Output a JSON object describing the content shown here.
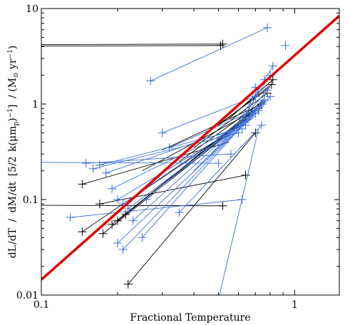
{
  "chart_data": {
    "type": "scatter",
    "title": "",
    "xlabel": "Fractional Temperature",
    "ylabel_parts": {
      "frac1_num": "dL",
      "frac1_den": "dT",
      "slash1": "/",
      "frac2_num": "dM",
      "frac2_den": "dt",
      "bracket_open": "[",
      "frac3_num": "5",
      "frac3_den": "2",
      "body": "k(μm",
      "sub_p": "p",
      "close_paren": ")",
      "sup1": "−1",
      "bracket_close": "]",
      "unit_open": "/ (M",
      "sun_symbol": "⊙",
      "unit_mid": " yr",
      "sup2": "−1",
      "unit_close": ")"
    },
    "x_scale": "log",
    "y_scale": "log",
    "xlim": [
      0.1,
      1.5
    ],
    "ylim": [
      0.01,
      10
    ],
    "x_ticks": [
      {
        "value": 0.1,
        "label": "0.1"
      },
      {
        "value": 1,
        "label": "1"
      }
    ],
    "y_ticks": [
      {
        "value": 0.01,
        "label": "0.01"
      },
      {
        "value": 0.1,
        "label": "0.1"
      },
      {
        "value": 1,
        "label": "1"
      },
      {
        "value": 10,
        "label": "10"
      }
    ],
    "grid": false,
    "colors": {
      "black": "#000000",
      "blue": "#3a6fd8",
      "fit": "#e00000"
    },
    "fit_line": {
      "color": "#e00000",
      "points": [
        [
          0.1,
          0.0145
        ],
        [
          1.5,
          8.4
        ]
      ]
    },
    "series": [
      {
        "color": "#000000",
        "segments": [
          [
            [
              0.1,
              4.05
            ],
            [
              0.51,
              4.1
            ]
          ],
          [
            [
              0.1,
              4.2
            ],
            [
              0.52,
              4.25
            ]
          ],
          [
            [
              0.1,
              0.087
            ],
            [
              0.52,
              0.086
            ]
          ],
          [
            [
              0.145,
              0.145
            ],
            [
              0.55,
              0.4
            ]
          ],
          [
            [
              0.145,
              0.046
            ],
            [
              0.6,
              0.6
            ]
          ],
          [
            [
              0.17,
              0.09
            ],
            [
              0.64,
              0.18
            ]
          ],
          [
            [
              0.175,
              0.044
            ],
            [
              0.65,
              0.7
            ]
          ],
          [
            [
              0.19,
              0.055
            ],
            [
              0.66,
              0.75
            ]
          ],
          [
            [
              0.2,
              0.06
            ],
            [
              0.67,
              0.8
            ]
          ],
          [
            [
              0.215,
              0.07
            ],
            [
              0.68,
              0.85
            ]
          ],
          [
            [
              0.22,
              0.013
            ],
            [
              0.7,
              0.5
            ]
          ],
          [
            [
              0.25,
              0.2
            ],
            [
              0.72,
              0.9
            ]
          ],
          [
            [
              0.3,
              0.33
            ],
            [
              0.74,
              1.0
            ]
          ],
          [
            [
              0.35,
              0.25
            ],
            [
              0.76,
              1.1
            ]
          ],
          [
            [
              0.4,
              0.35
            ],
            [
              0.78,
              1.3
            ]
          ],
          [
            [
              0.45,
              0.5
            ],
            [
              0.8,
              1.5
            ]
          ],
          [
            [
              0.5,
              0.6
            ],
            [
              0.81,
              1.6
            ]
          ],
          [
            [
              0.55,
              0.7
            ],
            [
              0.82,
              1.8
            ]
          ]
        ],
        "points": [
          [
            0.51,
            4.1
          ],
          [
            0.52,
            4.25
          ],
          [
            0.145,
            0.145
          ],
          [
            0.145,
            0.046
          ],
          [
            0.17,
            0.09
          ],
          [
            0.175,
            0.044
          ],
          [
            0.19,
            0.055
          ],
          [
            0.2,
            0.06
          ],
          [
            0.215,
            0.07
          ],
          [
            0.22,
            0.013
          ],
          [
            0.52,
            0.086
          ],
          [
            0.64,
            0.18
          ],
          [
            0.66,
            0.75
          ],
          [
            0.68,
            0.85
          ],
          [
            0.7,
            0.5
          ],
          [
            0.72,
            0.9
          ],
          [
            0.74,
            1.0
          ],
          [
            0.76,
            1.1
          ],
          [
            0.78,
            1.3
          ],
          [
            0.81,
            1.6
          ],
          [
            0.82,
            1.8
          ]
        ]
      },
      {
        "color": "#3a6fd8",
        "segments": [
          [
            [
              0.27,
              1.75
            ],
            [
              0.78,
              6.3
            ]
          ],
          [
            [
              0.1,
              0.245
            ],
            [
              0.5,
              0.24
            ]
          ],
          [
            [
              0.13,
              0.065
            ],
            [
              0.62,
              0.1
            ]
          ],
          [
            [
              0.15,
              0.24
            ],
            [
              0.56,
              0.3
            ]
          ],
          [
            [
              0.16,
              0.21
            ],
            [
              0.6,
              0.5
            ]
          ],
          [
            [
              0.17,
              0.23
            ],
            [
              0.62,
              0.55
            ]
          ],
          [
            [
              0.18,
              0.19
            ],
            [
              0.64,
              0.6
            ]
          ],
          [
            [
              0.19,
              0.13
            ],
            [
              0.66,
              0.65
            ]
          ],
          [
            [
              0.2,
              0.1
            ],
            [
              0.68,
              0.7
            ]
          ],
          [
            [
              0.21,
              0.09
            ],
            [
              0.7,
              0.75
            ]
          ],
          [
            [
              0.22,
              0.08
            ],
            [
              0.7,
              0.8
            ]
          ],
          [
            [
              0.2,
              0.035
            ],
            [
              0.72,
              0.85
            ]
          ],
          [
            [
              0.21,
              0.03
            ],
            [
              0.72,
              0.9
            ]
          ],
          [
            [
              0.23,
              0.06
            ],
            [
              0.73,
              0.95
            ]
          ],
          [
            [
              0.25,
              0.04
            ],
            [
              0.74,
              1.0
            ]
          ],
          [
            [
              0.26,
              0.1
            ],
            [
              0.75,
              1.05
            ]
          ],
          [
            [
              0.3,
              0.5
            ],
            [
              0.7,
              1.2
            ]
          ],
          [
            [
              0.32,
              0.35
            ],
            [
              0.72,
              0.9
            ]
          ],
          [
            [
              0.35,
              0.073
            ],
            [
              0.74,
              0.6
            ]
          ],
          [
            [
              0.4,
              0.2
            ],
            [
              0.76,
              1.1
            ]
          ],
          [
            [
              0.45,
              0.26
            ],
            [
              0.78,
              1.4
            ]
          ],
          [
            [
              0.5,
              0.35
            ],
            [
              0.8,
              1.2
            ]
          ],
          [
            [
              0.55,
              0.45
            ],
            [
              0.82,
              2.5
            ]
          ],
          [
            [
              0.6,
              0.55
            ],
            [
              0.76,
              1.8
            ]
          ],
          [
            [
              0.5,
              0.009
            ],
            [
              0.72,
              0.55
            ]
          ],
          [
            [
              0.62,
              0.7
            ],
            [
              0.8,
              2.0
            ]
          ],
          [
            [
              0.65,
              0.8
            ],
            [
              0.7,
              1.5
            ]
          ]
        ],
        "points": [
          [
            0.27,
            1.75
          ],
          [
            0.78,
            6.3
          ],
          [
            0.92,
            4.1
          ],
          [
            0.13,
            0.065
          ],
          [
            0.15,
            0.24
          ],
          [
            0.16,
            0.21
          ],
          [
            0.17,
            0.23
          ],
          [
            0.18,
            0.19
          ],
          [
            0.19,
            0.13
          ],
          [
            0.2,
            0.1
          ],
          [
            0.21,
            0.09
          ],
          [
            0.22,
            0.08
          ],
          [
            0.2,
            0.035
          ],
          [
            0.21,
            0.03
          ],
          [
            0.23,
            0.06
          ],
          [
            0.25,
            0.04
          ],
          [
            0.26,
            0.1
          ],
          [
            0.3,
            0.5
          ],
          [
            0.32,
            0.35
          ],
          [
            0.35,
            0.073
          ],
          [
            0.5,
            0.24
          ],
          [
            0.62,
            0.1
          ],
          [
            0.56,
            0.3
          ],
          [
            0.6,
            0.5
          ],
          [
            0.62,
            0.55
          ],
          [
            0.64,
            0.6
          ],
          [
            0.7,
            0.8
          ],
          [
            0.72,
            0.85
          ],
          [
            0.73,
            0.95
          ],
          [
            0.75,
            1.05
          ],
          [
            0.7,
            1.2
          ],
          [
            0.78,
            1.4
          ],
          [
            0.8,
            1.2
          ],
          [
            0.82,
            2.5
          ],
          [
            0.76,
            1.8
          ],
          [
            0.8,
            2.0
          ],
          [
            0.7,
            1.5
          ],
          [
            0.76,
            1.1
          ],
          [
            0.74,
            0.6
          ]
        ]
      }
    ]
  }
}
